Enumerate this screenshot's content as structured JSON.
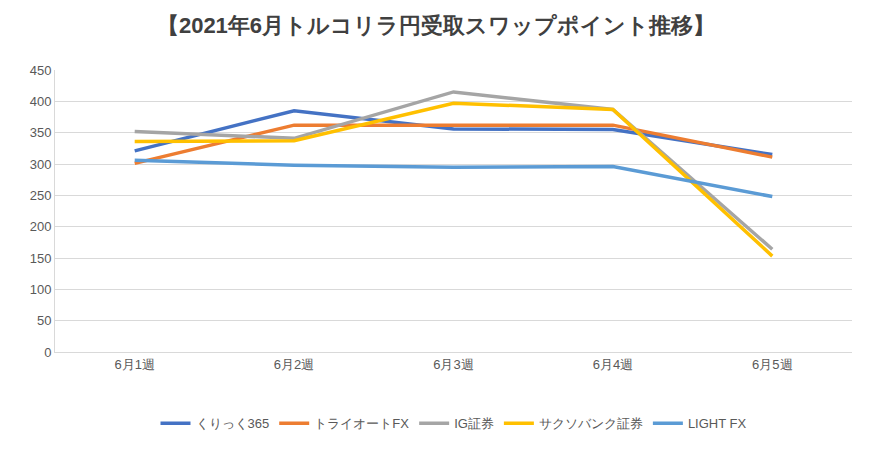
{
  "chart_data": {
    "type": "line",
    "title": "【2021年6月トルコリラ円受取スワップポイント推移】",
    "categories": [
      "6月1週",
      "6月2週",
      "6月3週",
      "6月4週",
      "6月5週"
    ],
    "series": [
      {
        "name": "くりっく365",
        "color": "#4472c4",
        "values": [
          321,
          385,
          356,
          355,
          315
        ]
      },
      {
        "name": "トライオートFX",
        "color": "#ed7d31",
        "values": [
          301,
          362,
          362,
          362,
          311
        ]
      },
      {
        "name": "IG証券",
        "color": "#a5a5a5",
        "values": [
          352,
          341,
          415,
          387,
          164
        ]
      },
      {
        "name": "サクソバンク証券",
        "color": "#ffc000",
        "values": [
          336,
          337,
          397,
          387,
          153
        ]
      },
      {
        "name": "LIGHT FX",
        "color": "#5b9bd5",
        "values": [
          306,
          298,
          295,
          296,
          248
        ]
      }
    ],
    "ylim": [
      0,
      450
    ],
    "yticks": [
      0,
      50,
      100,
      150,
      200,
      250,
      300,
      350,
      400,
      450
    ],
    "grid": true,
    "legend": "bottom"
  }
}
